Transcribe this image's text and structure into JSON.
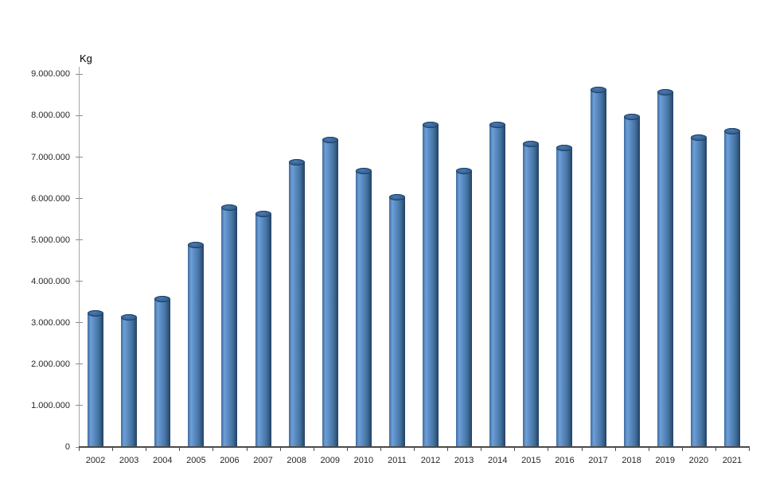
{
  "chart": {
    "unit_label": "Kg",
    "colors": {
      "bar_main": "#4f81bd",
      "bar_highlight": "#6e9ed4",
      "bar_edge_dark": "#223f60",
      "cap_fill": "#35608f",
      "cap_edge": "#1d3f66",
      "x_axis_line": "#4a4a4a",
      "y_axis_line": "#a6a6a6",
      "text": "#262626",
      "background": "#ffffff"
    }
  },
  "chart_data": {
    "type": "bar",
    "style": "3d-cylinder",
    "title": "",
    "xlabel": "",
    "ylabel": "Kg",
    "categories": [
      "2002",
      "2003",
      "2004",
      "2005",
      "2006",
      "2007",
      "2008",
      "2009",
      "2010",
      "2011",
      "2012",
      "2013",
      "2014",
      "2015",
      "2016",
      "2017",
      "2018",
      "2019",
      "2020",
      "2021"
    ],
    "values": [
      3300000,
      3200000,
      3650000,
      4950000,
      5850000,
      5700000,
      6950000,
      7500000,
      6750000,
      6100000,
      7850000,
      6750000,
      7850000,
      7400000,
      7300000,
      8700000,
      8050000,
      8650000,
      7550000,
      7700000
    ],
    "ylim": [
      0,
      9000000
    ],
    "ytick_interval": 1000000,
    "ytick_labels": [
      "0",
      "1.000.000",
      "2.000.000",
      "3.000.000",
      "4.000.000",
      "5.000.000",
      "6.000.000",
      "7.000.000",
      "8.000.000",
      "9.000.000"
    ],
    "grid": "none",
    "legend": "none"
  }
}
